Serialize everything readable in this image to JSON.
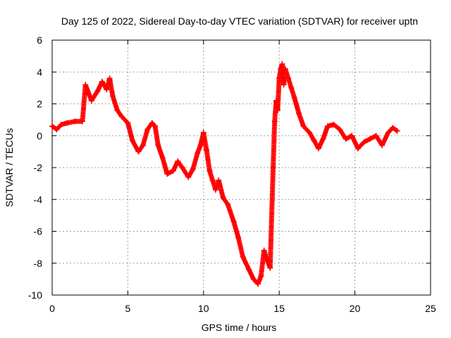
{
  "chart_data": {
    "type": "scatter",
    "title": "Day 125 of 2022, Sidereal Day-to-day VTEC variation (SDTVAR) for receiver uptn",
    "xlabel": "GPS time / hours",
    "ylabel": "SDTVAR / TECUs",
    "xlim": [
      0,
      25
    ],
    "ylim": [
      -10,
      6
    ],
    "xticks": [
      "0",
      "5",
      "10",
      "15",
      "20",
      "25"
    ],
    "yticks": [
      "-10",
      "-8",
      "-6",
      "-4",
      "-2",
      "0",
      "2",
      "4",
      "6"
    ],
    "grid": true,
    "marker": "+",
    "series": [
      {
        "name": "SDTVAR",
        "color": "#ff0000",
        "x": [
          0.0,
          0.3,
          0.6,
          1.0,
          1.5,
          2.0,
          2.2,
          2.6,
          3.0,
          3.3,
          3.6,
          3.8,
          4.0,
          4.3,
          4.6,
          5.0,
          5.3,
          5.7,
          6.0,
          6.3,
          6.6,
          6.8,
          7.0,
          7.3,
          7.6,
          8.0,
          8.3,
          8.6,
          9.0,
          9.3,
          9.6,
          9.8,
          10.0,
          10.2,
          10.4,
          10.6,
          10.8,
          11.0,
          11.3,
          11.6,
          12.0,
          12.3,
          12.6,
          13.0,
          13.3,
          13.6,
          13.8,
          14.0,
          14.2,
          14.4,
          14.6,
          14.7,
          14.8,
          14.9,
          15.0,
          15.1,
          15.2,
          15.3,
          15.4,
          15.6,
          15.8,
          16.0,
          16.3,
          16.6,
          17.0,
          17.3,
          17.6,
          17.9,
          18.2,
          18.6,
          19.0,
          19.4,
          19.8,
          20.2,
          20.6,
          21.0,
          21.4,
          21.8,
          22.2,
          22.5,
          22.8
        ],
        "y": [
          0.6,
          0.4,
          0.7,
          0.8,
          0.9,
          0.9,
          3.2,
          2.2,
          2.8,
          3.4,
          2.9,
          3.6,
          2.5,
          1.6,
          1.2,
          0.8,
          -0.3,
          -1.0,
          -0.6,
          0.4,
          0.8,
          0.6,
          -0.6,
          -1.4,
          -2.4,
          -2.2,
          -1.6,
          -2.0,
          -2.6,
          -2.1,
          -1.1,
          -0.6,
          0.2,
          -0.9,
          -2.2,
          -2.8,
          -3.4,
          -2.8,
          -3.9,
          -4.3,
          -5.4,
          -6.4,
          -7.6,
          -8.4,
          -9.0,
          -9.3,
          -8.8,
          -7.2,
          -7.8,
          -8.3,
          -2.0,
          0.9,
          2.2,
          1.6,
          3.6,
          4.2,
          4.5,
          3.2,
          4.2,
          3.6,
          3.0,
          2.4,
          1.4,
          0.6,
          0.2,
          -0.3,
          -0.8,
          -0.2,
          0.6,
          0.7,
          0.4,
          -0.2,
          0.0,
          -0.8,
          -0.4,
          -0.2,
          0.0,
          -0.6,
          0.2,
          0.5,
          0.3
        ]
      }
    ]
  }
}
